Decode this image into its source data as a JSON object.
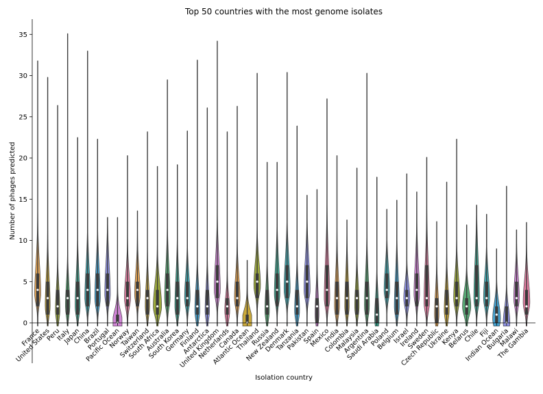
{
  "chart_data": {
    "type": "violin",
    "title": "Top 50 countries with the most genome isolates",
    "xlabel": "Isolation country",
    "ylabel": "Number of phages predicted",
    "ylim": [
      -0.6,
      37
    ],
    "yticks": [
      0,
      5,
      10,
      15,
      20,
      25,
      30,
      35
    ],
    "grid": false,
    "legend": "none",
    "palette": [
      "#e6a24c",
      "#c8a531",
      "#97a533",
      "#4fa56e",
      "#35a38d",
      "#38a2ab",
      "#3d9fd0",
      "#8c8fe6",
      "#cf7fd4",
      "#e57aa1"
    ],
    "countries": [
      {
        "name": "France",
        "max": 31.8,
        "median": 4,
        "q1": 2,
        "q3": 6,
        "peak": 3.5,
        "w": 0.55
      },
      {
        "name": "United States",
        "max": 29.8,
        "median": 3,
        "q1": 1,
        "q3": 5,
        "peak": 2,
        "w": 0.45
      },
      {
        "name": "Peru",
        "max": 26.4,
        "median": 2,
        "q1": 1,
        "q3": 4,
        "peak": 1.5,
        "w": 0.4
      },
      {
        "name": "Italy",
        "max": 35.1,
        "median": 3,
        "q1": 1,
        "q3": 4,
        "peak": 2,
        "w": 0.4
      },
      {
        "name": "Japan",
        "max": 22.5,
        "median": 3,
        "q1": 1,
        "q3": 5,
        "peak": 2,
        "w": 0.45
      },
      {
        "name": "China",
        "max": 33,
        "median": 4,
        "q1": 2,
        "q3": 6,
        "peak": 3,
        "w": 0.5
      },
      {
        "name": "Brazil",
        "max": 22.3,
        "median": 4,
        "q1": 2,
        "q3": 6,
        "peak": 3,
        "w": 0.5
      },
      {
        "name": "Portugal",
        "max": 12.8,
        "median": 4,
        "q1": 2,
        "q3": 6,
        "peak": 3.5,
        "w": 0.5
      },
      {
        "name": "Pacific Ocean",
        "max": 12.8,
        "median": 0,
        "q1": 0,
        "q3": 1,
        "peak": 0,
        "w": 0.9
      },
      {
        "name": "Norway",
        "max": 20.3,
        "median": 3,
        "q1": 2,
        "q3": 5,
        "peak": 3,
        "w": 0.55
      },
      {
        "name": "Taiwan",
        "max": 13.6,
        "median": 4,
        "q1": 2,
        "q3": 5,
        "peak": 3.5,
        "w": 0.5
      },
      {
        "name": "Switzerland",
        "max": 23.2,
        "median": 3,
        "q1": 1,
        "q3": 4,
        "peak": 2,
        "w": 0.4
      },
      {
        "name": "South Africa",
        "max": 19,
        "median": 2,
        "q1": 1,
        "q3": 4,
        "peak": 2,
        "w": 0.75
      },
      {
        "name": "Australia",
        "max": 29.5,
        "median": 4,
        "q1": 2,
        "q3": 6,
        "peak": 3,
        "w": 0.5
      },
      {
        "name": "South Korea",
        "max": 19.2,
        "median": 3,
        "q1": 1,
        "q3": 5,
        "peak": 2,
        "w": 0.45
      },
      {
        "name": "Germany",
        "max": 23.3,
        "median": 3,
        "q1": 2,
        "q3": 5,
        "peak": 3,
        "w": 0.5
      },
      {
        "name": "Finland",
        "max": 31.9,
        "median": 2,
        "q1": 1,
        "q3": 4,
        "peak": 1.5,
        "w": 0.45
      },
      {
        "name": "Antarctica",
        "max": 26.1,
        "median": 2,
        "q1": 1,
        "q3": 4,
        "peak": 1.5,
        "w": 0.4
      },
      {
        "name": "United Kingdom",
        "max": 34.2,
        "median": 5,
        "q1": 3,
        "q3": 7,
        "peak": 4,
        "w": 0.55
      },
      {
        "name": "Netherlands",
        "max": 23.2,
        "median": 2,
        "q1": 1,
        "q3": 3,
        "peak": 1.5,
        "w": 0.45
      },
      {
        "name": "Canada",
        "max": 26.3,
        "median": 3,
        "q1": 2,
        "q3": 5,
        "peak": 3,
        "w": 0.5
      },
      {
        "name": "Atlantic Ocean",
        "max": 7.6,
        "median": 0,
        "q1": 0,
        "q3": 1,
        "peak": 0,
        "w": 1.0
      },
      {
        "name": "Thailand",
        "max": 30.3,
        "median": 5,
        "q1": 3,
        "q3": 6,
        "peak": 4.5,
        "w": 0.6
      },
      {
        "name": "Russia",
        "max": 19.5,
        "median": 2,
        "q1": 1,
        "q3": 4,
        "peak": 1.5,
        "w": 0.4
      },
      {
        "name": "New Zealand",
        "max": 19.5,
        "median": 4,
        "q1": 2,
        "q3": 6,
        "peak": 3.5,
        "w": 0.5
      },
      {
        "name": "Denmark",
        "max": 30.4,
        "median": 5,
        "q1": 3,
        "q3": 7,
        "peak": 4,
        "w": 0.55
      },
      {
        "name": "Tanzania",
        "max": 23.9,
        "median": 2,
        "q1": 1,
        "q3": 4,
        "peak": 1.5,
        "w": 0.45
      },
      {
        "name": "Pakistan",
        "max": 15.5,
        "median": 5,
        "q1": 3,
        "q3": 7,
        "peak": 4,
        "w": 0.55
      },
      {
        "name": "Spain",
        "max": 16.2,
        "median": 2,
        "q1": 0,
        "q3": 3,
        "peak": 1,
        "w": 0.35
      },
      {
        "name": "Mexico",
        "max": 27.2,
        "median": 4,
        "q1": 2,
        "q3": 7,
        "peak": 3,
        "w": 0.5
      },
      {
        "name": "India",
        "max": 20.3,
        "median": 3,
        "q1": 1,
        "q3": 5,
        "peak": 2,
        "w": 0.45
      },
      {
        "name": "Colombia",
        "max": 12.5,
        "median": 3,
        "q1": 1,
        "q3": 5,
        "peak": 2,
        "w": 0.4
      },
      {
        "name": "Malaysia",
        "max": 18.8,
        "median": 3,
        "q1": 1,
        "q3": 4,
        "peak": 2,
        "w": 0.4
      },
      {
        "name": "Argentina",
        "max": 30.3,
        "median": 3,
        "q1": 1,
        "q3": 5,
        "peak": 2,
        "w": 0.45
      },
      {
        "name": "Saudi Arabia",
        "max": 17.7,
        "median": 1,
        "q1": 0,
        "q3": 3,
        "peak": 0.5,
        "w": 0.4
      },
      {
        "name": "Poland",
        "max": 13.8,
        "median": 4,
        "q1": 3,
        "q3": 6,
        "peak": 4,
        "w": 0.5
      },
      {
        "name": "Belgium",
        "max": 14.9,
        "median": 3,
        "q1": 1,
        "q3": 5,
        "peak": 2,
        "w": 0.45
      },
      {
        "name": "Israel",
        "max": 18.1,
        "median": 3,
        "q1": 2,
        "q3": 4,
        "peak": 3,
        "w": 0.55
      },
      {
        "name": "Ireland",
        "max": 15.9,
        "median": 4,
        "q1": 2,
        "q3": 6,
        "peak": 3.5,
        "w": 0.5
      },
      {
        "name": "Sweden",
        "max": 20.1,
        "median": 3,
        "q1": 2,
        "q3": 7,
        "peak": 2.5,
        "w": 0.5
      },
      {
        "name": "Czech Republic",
        "max": 12.3,
        "median": 2,
        "q1": 0,
        "q3": 3,
        "peak": 1,
        "w": 0.4
      },
      {
        "name": "Ukraine",
        "max": 17.1,
        "median": 2,
        "q1": 1,
        "q3": 4,
        "peak": 1.5,
        "w": 0.45
      },
      {
        "name": "Kenya",
        "max": 22.3,
        "median": 3,
        "q1": 2,
        "q3": 5,
        "peak": 3,
        "w": 0.55
      },
      {
        "name": "Belarus",
        "max": 11.9,
        "median": 2,
        "q1": 1,
        "q3": 3,
        "peak": 2,
        "w": 0.75
      },
      {
        "name": "Chile",
        "max": 14.3,
        "median": 3,
        "q1": 2,
        "q3": 7,
        "peak": 3,
        "w": 0.5
      },
      {
        "name": "Fiji",
        "max": 13.2,
        "median": 3,
        "q1": 2,
        "q3": 5,
        "peak": 3,
        "w": 0.55
      },
      {
        "name": "Indian Ocean",
        "max": 9,
        "median": 1,
        "q1": 0,
        "q3": 2,
        "peak": 0.5,
        "w": 0.7
      },
      {
        "name": "Bulgaria",
        "max": 16.6,
        "median": 0,
        "q1": 0,
        "q3": 2,
        "peak": 0,
        "w": 0.6
      },
      {
        "name": "Malawi",
        "max": 11.3,
        "median": 3,
        "q1": 2,
        "q3": 5,
        "peak": 3,
        "w": 0.5
      },
      {
        "name": "The Gambia",
        "max": 12.2,
        "median": 2,
        "q1": 1,
        "q3": 4,
        "peak": 2.5,
        "w": 0.6
      }
    ]
  }
}
